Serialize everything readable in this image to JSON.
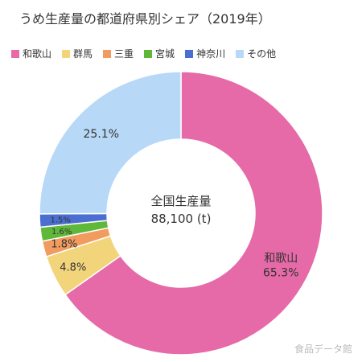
{
  "chart_data": {
    "type": "pie",
    "title": "うめ生産量の都道府県別シェア（2019年）",
    "categories": [
      "和歌山",
      "群馬",
      "三重",
      "宮城",
      "神奈川",
      "その他"
    ],
    "values": [
      65.3,
      4.8,
      1.8,
      1.6,
      1.5,
      25.1
    ],
    "colors": [
      "#e66aa7",
      "#f2d47a",
      "#f29b5f",
      "#5fb83a",
      "#4a6fd0",
      "#b8d8f7"
    ],
    "slice_labels": [
      "和歌山\n65.3%",
      "4.8%",
      "1.8%",
      "1.6%",
      "1.5%",
      "25.1%"
    ],
    "center_label": [
      "全国生産量",
      "88,100 (t)"
    ],
    "legend_position": "top"
  },
  "watermark": "食品データ館"
}
